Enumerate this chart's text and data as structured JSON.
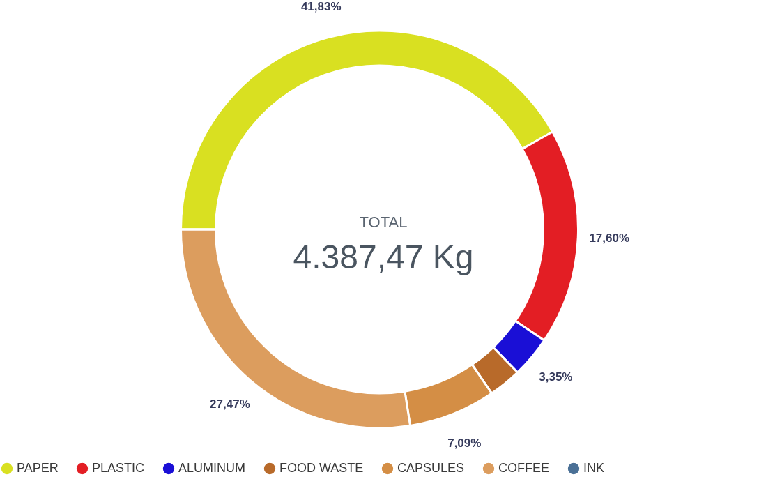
{
  "chart_data": {
    "type": "donut",
    "categories": [
      "PAPER",
      "PLASTIC",
      "ALUMINUM",
      "FOOD WASTE",
      "CAPSULES",
      "COFFEE",
      "INK"
    ],
    "values": [
      41.83,
      17.6,
      3.35,
      2.66,
      7.09,
      27.47,
      0
    ],
    "value_labels": [
      "41,83%",
      "17,60%",
      "3,35%",
      null,
      "7,09%",
      "27,47%",
      null
    ],
    "colors": [
      "#d9e021",
      "#e31e24",
      "#1a0fd6",
      "#b86a2a",
      "#d48e45",
      "#dc9d5e",
      "#4a7096"
    ],
    "annotations": [
      "TOTAL",
      "4.387,47 Kg"
    ],
    "legend": "bottom"
  }
}
